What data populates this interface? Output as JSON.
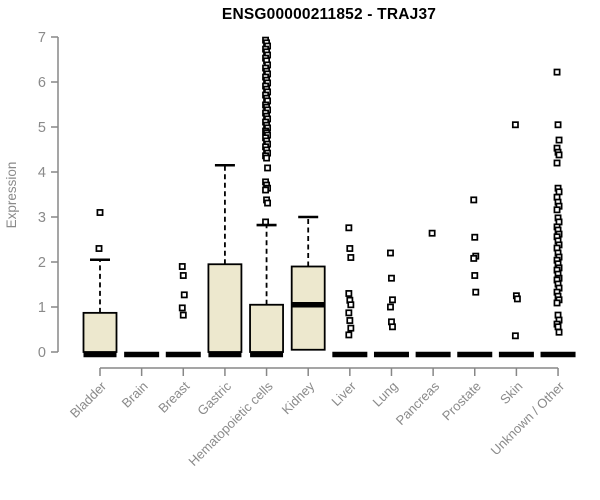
{
  "page": {
    "background": "#ffffff"
  },
  "chart_data": {
    "type": "box",
    "title": "ENSG00000211852 - TRAJ37",
    "ylabel": "Expression",
    "xlabel": "",
    "ylim": [
      0,
      7
    ],
    "yticks": [
      0,
      1,
      2,
      3,
      4,
      5,
      6,
      7
    ],
    "grid": false,
    "legend": false,
    "colors": {
      "box_fill": "#EDE8CE",
      "box_stroke": "#000000",
      "median": "#000000",
      "outlier_stroke": "#000000",
      "outlier_fill": "#ffffff",
      "axis_line": "#878787",
      "axis_text": "#8a8a8a",
      "title_text": "#000000"
    },
    "categories": [
      "Bladder",
      "Brain",
      "Breast",
      "Gastric",
      "Hematopoietic cells",
      "Kidney",
      "Liver",
      "Lung",
      "Pancreas",
      "Prostate",
      "Skin",
      "Unknown / Other"
    ],
    "boxes": [
      {
        "label": "Bladder",
        "whisker_low": 0,
        "q1": 0,
        "median": 0,
        "q3": 0.87,
        "whisker_high": 2.05,
        "outliers": [
          2.3,
          3.1
        ]
      },
      {
        "label": "Brain",
        "whisker_low": 0,
        "q1": 0,
        "median": 0,
        "q3": 0,
        "whisker_high": 0,
        "outliers": []
      },
      {
        "label": "Breast",
        "whisker_low": 0,
        "q1": 0,
        "median": 0,
        "q3": 0,
        "whisker_high": 0,
        "outliers": [
          1.9,
          1.7,
          1.27,
          0.98,
          0.82
        ]
      },
      {
        "label": "Gastric",
        "whisker_low": 0,
        "q1": 0,
        "median": 0,
        "q3": 1.95,
        "whisker_high": 4.15,
        "outliers": []
      },
      {
        "label": "Hematopoietic cells",
        "whisker_low": 0,
        "q1": 0,
        "median": 0,
        "q3": 1.05,
        "whisker_high": 2.82,
        "outliers": [
          6.93,
          6.87,
          6.8,
          6.73,
          6.67,
          6.6,
          6.53,
          6.47,
          6.38,
          6.31,
          6.24,
          6.18,
          6.11,
          6.04,
          5.98,
          5.91,
          5.84,
          5.78,
          5.71,
          5.64,
          5.58,
          5.49,
          5.44,
          5.38,
          5.31,
          5.24,
          5.18,
          5.11,
          5.04,
          4.98,
          4.91,
          4.87,
          4.82,
          4.76,
          4.69,
          4.62,
          4.56,
          4.49,
          4.42,
          4.36,
          4.31,
          4.09,
          3.78,
          3.71,
          3.64,
          3.6,
          3.38,
          3.31,
          2.89
        ]
      },
      {
        "label": "Kidney",
        "whisker_low": 0.05,
        "q1": 0.05,
        "median": 1.05,
        "q3": 1.9,
        "whisker_high": 3.0,
        "outliers": []
      },
      {
        "label": "Liver",
        "whisker_low": 0,
        "q1": 0,
        "median": 0,
        "q3": 0,
        "whisker_high": 0,
        "outliers": [
          2.76,
          2.3,
          2.1,
          1.3,
          1.15,
          1.05,
          0.87,
          0.7,
          0.53,
          0.38
        ]
      },
      {
        "label": "Lung",
        "whisker_low": 0,
        "q1": 0,
        "median": 0,
        "q3": 0,
        "whisker_high": 0,
        "outliers": [
          2.2,
          1.64,
          1.16,
          1.0,
          0.67,
          0.56
        ]
      },
      {
        "label": "Pancreas",
        "whisker_low": 0,
        "q1": 0,
        "median": 0,
        "q3": 0,
        "whisker_high": 0,
        "outliers": [
          2.64
        ]
      },
      {
        "label": "Prostate",
        "whisker_low": 0,
        "q1": 0,
        "median": 0,
        "q3": 0,
        "whisker_high": 0,
        "outliers": [
          3.38,
          2.55,
          2.13,
          2.08,
          1.7,
          1.33
        ]
      },
      {
        "label": "Skin",
        "whisker_low": 0,
        "q1": 0,
        "median": 0,
        "q3": 0,
        "whisker_high": 0,
        "outliers": [
          5.05,
          1.25,
          1.18,
          0.36
        ]
      },
      {
        "label": "Unknown / Other",
        "whisker_low": 0,
        "q1": 0,
        "median": 0,
        "q3": 0,
        "whisker_high": 0,
        "outliers": [
          6.22,
          5.05,
          4.71,
          4.53,
          4.44,
          4.38,
          4.2,
          3.64,
          3.56,
          3.44,
          3.33,
          3.24,
          3.16,
          2.98,
          2.89,
          2.78,
          2.71,
          2.62,
          2.56,
          2.47,
          2.38,
          2.31,
          2.2,
          2.11,
          2.04,
          1.96,
          1.87,
          1.82,
          1.73,
          1.64,
          1.6,
          1.51,
          1.42,
          1.33,
          1.24,
          1.16,
          1.09,
          0.82,
          0.71,
          0.62,
          0.56,
          0.44
        ]
      }
    ]
  }
}
